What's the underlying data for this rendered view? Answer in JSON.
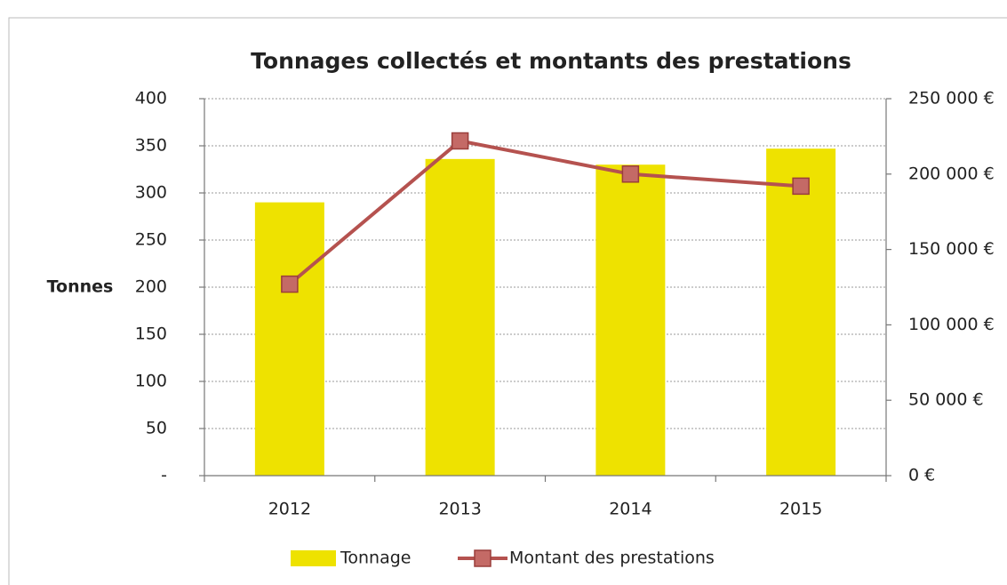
{
  "chart_data": {
    "type": "bar_line",
    "title": "Tonnages collectés et montants des prestations",
    "y_label": "Tonnes",
    "categories": [
      "2012",
      "2013",
      "2014",
      "2015"
    ],
    "series": [
      {
        "name": "Tonnage",
        "type": "bar",
        "color": "#eee200",
        "values": [
          290,
          336,
          330,
          347
        ]
      },
      {
        "name": "Montant des prestations",
        "type": "line",
        "axis": "y2",
        "color": "#b5524f",
        "values": [
          127000,
          222000,
          200000,
          192000
        ]
      }
    ],
    "ylim": [
      0,
      400
    ],
    "yticks": [
      {
        "value": 0,
        "label": "-"
      },
      50,
      100,
      150,
      200,
      250,
      300,
      350,
      400
    ],
    "y2lim": [
      0,
      250000
    ],
    "y2ticks": [
      {
        "value": 0,
        "label": "0 €"
      },
      {
        "value": 50000,
        "label": "50 000 €"
      },
      {
        "value": 100000,
        "label": "100 000 €"
      },
      {
        "value": 150000,
        "label": "150 000 €"
      },
      {
        "value": 200000,
        "label": "200 000 €"
      },
      {
        "value": 250000,
        "label": "250 000 €"
      }
    ],
    "grid": true,
    "legend": "bottom"
  }
}
